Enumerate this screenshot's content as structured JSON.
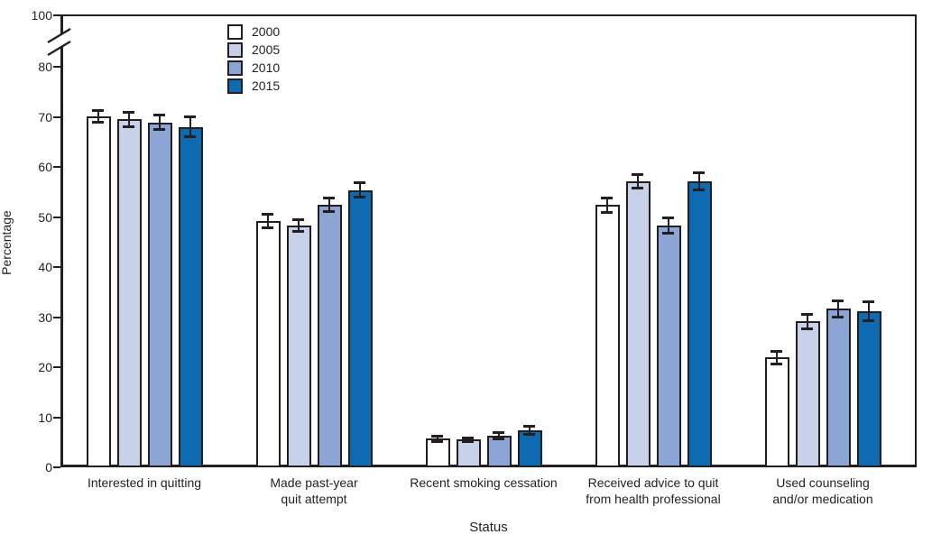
{
  "chart_data": {
    "type": "bar",
    "subtype": "grouped-vertical-with-error-bars",
    "xlabel": "Status",
    "ylabel": "Percentage",
    "ylim": [
      0,
      100
    ],
    "yticks": [
      0,
      10,
      20,
      30,
      40,
      50,
      60,
      70,
      80,
      100
    ],
    "axis_break_between": [
      80,
      100
    ],
    "grid": "off",
    "legend_position": "top-left-inside",
    "categories": [
      "Interested in quitting",
      "Made past-year\nquit attempt",
      "Recent smoking cessation",
      "Received advice to quit\nfrom health professional",
      "Used counseling\nand/or medication"
    ],
    "series": [
      {
        "name": "2000",
        "color": "#ffffff",
        "values": [
          70.1,
          49.2,
          5.7,
          52.4,
          21.9
        ],
        "error_half_widths": [
          1.2,
          1.5,
          0.6,
          1.5,
          1.3
        ]
      },
      {
        "name": "2005",
        "color": "#c7d1ea",
        "values": [
          69.5,
          48.3,
          5.5,
          57.1,
          29.1
        ],
        "error_half_widths": [
          1.5,
          1.3,
          0.5,
          1.4,
          1.6
        ]
      },
      {
        "name": "2010",
        "color": "#8ca5d5",
        "values": [
          68.9,
          52.4,
          6.3,
          48.3,
          31.7
        ],
        "error_half_widths": [
          1.5,
          1.4,
          0.7,
          1.6,
          1.7
        ]
      },
      {
        "name": "2015",
        "color": "#0e6ab1",
        "values": [
          68.0,
          55.4,
          7.4,
          57.2,
          31.2
        ],
        "error_half_widths": [
          2.1,
          1.5,
          0.9,
          1.8,
          2.0
        ]
      }
    ],
    "line_color": "#231f20"
  }
}
